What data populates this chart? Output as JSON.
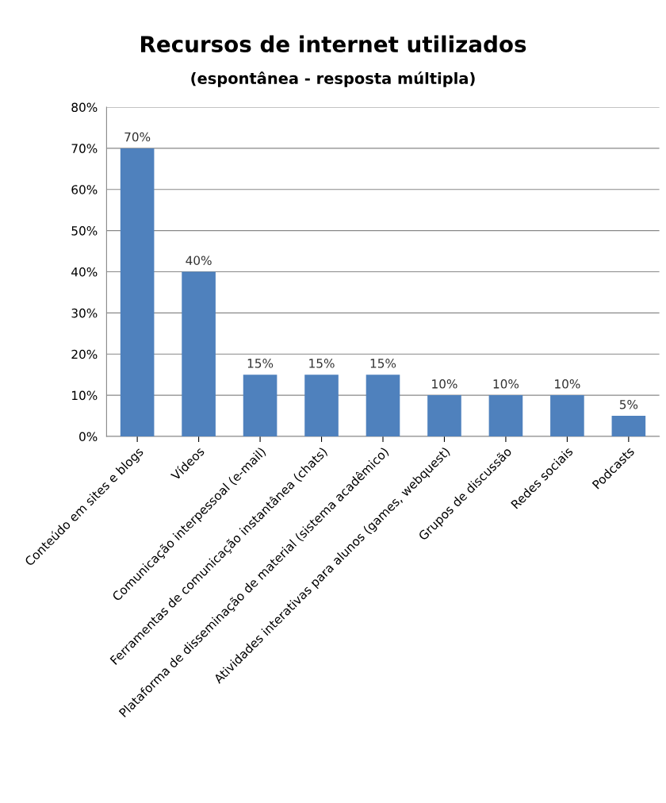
{
  "chart_data": {
    "type": "bar",
    "title": "Recursos de internet utilizados",
    "subtitle": "(espontânea - resposta múltipla)",
    "categories": [
      "Conteúdo em sites e blogs",
      "Vídeos",
      "Comunicação interpessoal (e-mail)",
      "Ferramentas de comunicação instantânea (chats)",
      "Plataforma de disseminação de material (sistema acadêmico)",
      "Atividades interativas para alunos (games, webquest)",
      "Grupos de discussão",
      "Redes sociais",
      "Podcasts"
    ],
    "values": [
      70,
      40,
      15,
      15,
      15,
      10,
      10,
      10,
      5
    ],
    "value_labels": [
      "70%",
      "40%",
      "15%",
      "15%",
      "15%",
      "10%",
      "10%",
      "10%",
      "5%"
    ],
    "color": "#4f81bd",
    "ylim": [
      0,
      80
    ],
    "yticks": [
      {
        "value": 0,
        "label": "0%"
      },
      {
        "value": 10,
        "label": "10%"
      },
      {
        "value": 20,
        "label": "20%"
      },
      {
        "value": 30,
        "label": "30%"
      },
      {
        "value": 40,
        "label": "40%"
      },
      {
        "value": 50,
        "label": "50%"
      },
      {
        "value": 60,
        "label": "60%"
      },
      {
        "value": 70,
        "label": "70%"
      },
      {
        "value": 80,
        "label": "80%"
      }
    ],
    "grid": "y",
    "legend": false
  }
}
